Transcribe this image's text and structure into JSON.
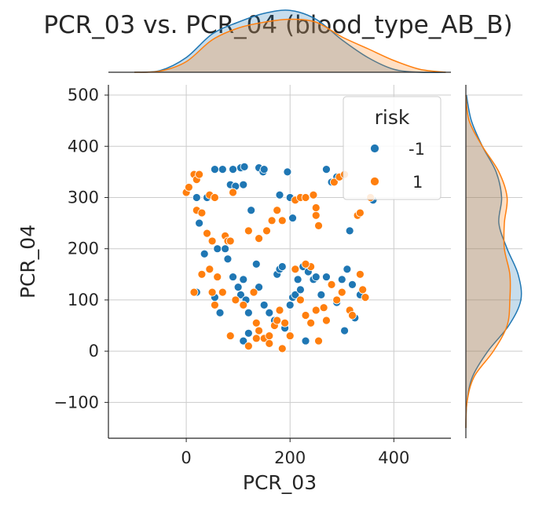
{
  "chart_data": {
    "type": "scatter",
    "title": "PCR_03 vs. PCR_04 (blood_type_AB_B)",
    "xlabel": "PCR_03",
    "ylabel": "PCR_04",
    "xlim": [
      -150,
      510
    ],
    "ylim": [
      -170,
      520
    ],
    "xticks": [
      0,
      200,
      400
    ],
    "xtick_labels": [
      "0",
      "200",
      "400"
    ],
    "yticks": [
      -100,
      0,
      100,
      200,
      300,
      400,
      500
    ],
    "ytick_labels": [
      "−100",
      "0",
      "100",
      "200",
      "300",
      "400",
      "500"
    ],
    "grid": true,
    "marginals": "kde",
    "legend": {
      "title": "risk",
      "position": "top-right",
      "entries": [
        {
          "label": "-1",
          "color": "#1f77b4"
        },
        {
          "label": "1",
          "color": "#ff7f0e"
        }
      ]
    },
    "series": [
      {
        "name": "-1",
        "color": "#1f77b4",
        "points": [
          [
            20,
            300
          ],
          [
            40,
            300
          ],
          [
            55,
            355
          ],
          [
            70,
            355
          ],
          [
            90,
            355
          ],
          [
            105,
            358
          ],
          [
            112,
            360
          ],
          [
            85,
            325
          ],
          [
            95,
            322
          ],
          [
            110,
            325
          ],
          [
            140,
            358
          ],
          [
            148,
            350
          ],
          [
            150,
            355
          ],
          [
            180,
            305
          ],
          [
            195,
            350
          ],
          [
            125,
            275
          ],
          [
            200,
            300
          ],
          [
            205,
            260
          ],
          [
            270,
            355
          ],
          [
            280,
            330
          ],
          [
            290,
            340
          ],
          [
            360,
            295
          ],
          [
            315,
            235
          ],
          [
            20,
            115
          ],
          [
            25,
            250
          ],
          [
            35,
            190
          ],
          [
            45,
            160
          ],
          [
            55,
            105
          ],
          [
            60,
            200
          ],
          [
            65,
            75
          ],
          [
            75,
            200
          ],
          [
            80,
            180
          ],
          [
            90,
            145
          ],
          [
            100,
            125
          ],
          [
            105,
            110
          ],
          [
            110,
            140
          ],
          [
            115,
            100
          ],
          [
            120,
            75
          ],
          [
            110,
            20
          ],
          [
            120,
            35
          ],
          [
            135,
            170
          ],
          [
            140,
            125
          ],
          [
            150,
            90
          ],
          [
            160,
            75
          ],
          [
            175,
            150
          ],
          [
            180,
            160
          ],
          [
            185,
            165
          ],
          [
            190,
            45
          ],
          [
            200,
            90
          ],
          [
            205,
            105
          ],
          [
            210,
            110
          ],
          [
            215,
            140
          ],
          [
            220,
            120
          ],
          [
            225,
            165
          ],
          [
            235,
            155
          ],
          [
            245,
            140
          ],
          [
            250,
            145
          ],
          [
            255,
            20
          ],
          [
            260,
            110
          ],
          [
            270,
            145
          ],
          [
            280,
            130
          ],
          [
            290,
            95
          ],
          [
            300,
            140
          ],
          [
            310,
            160
          ],
          [
            320,
            130
          ],
          [
            325,
            65
          ],
          [
            335,
            110
          ],
          [
            305,
            40
          ],
          [
            230,
            20
          ],
          [
            170,
            60
          ]
        ]
      },
      {
        "name": "1",
        "color": "#ff7f0e",
        "points": [
          [
            0,
            310
          ],
          [
            5,
            320
          ],
          [
            15,
            345
          ],
          [
            20,
            335
          ],
          [
            25,
            345
          ],
          [
            20,
            275
          ],
          [
            30,
            270
          ],
          [
            40,
            230
          ],
          [
            45,
            305
          ],
          [
            50,
            215
          ],
          [
            55,
            300
          ],
          [
            75,
            225
          ],
          [
            80,
            215
          ],
          [
            85,
            215
          ],
          [
            90,
            310
          ],
          [
            120,
            235
          ],
          [
            140,
            220
          ],
          [
            155,
            235
          ],
          [
            165,
            255
          ],
          [
            175,
            275
          ],
          [
            185,
            255
          ],
          [
            210,
            295
          ],
          [
            220,
            300
          ],
          [
            230,
            300
          ],
          [
            245,
            305
          ],
          [
            250,
            280
          ],
          [
            250,
            265
          ],
          [
            255,
            245
          ],
          [
            240,
            165
          ],
          [
            230,
            170
          ],
          [
            285,
            330
          ],
          [
            295,
            340
          ],
          [
            305,
            345
          ],
          [
            330,
            265
          ],
          [
            335,
            270
          ],
          [
            355,
            300
          ],
          [
            15,
            115
          ],
          [
            30,
            150
          ],
          [
            45,
            160
          ],
          [
            50,
            115
          ],
          [
            55,
            90
          ],
          [
            60,
            145
          ],
          [
            70,
            115
          ],
          [
            85,
            30
          ],
          [
            95,
            100
          ],
          [
            110,
            90
          ],
          [
            120,
            10
          ],
          [
            130,
            115
          ],
          [
            135,
            55
          ],
          [
            140,
            40
          ],
          [
            150,
            25
          ],
          [
            160,
            30
          ],
          [
            170,
            50
          ],
          [
            175,
            60
          ],
          [
            180,
            80
          ],
          [
            185,
            5
          ],
          [
            190,
            55
          ],
          [
            200,
            30
          ],
          [
            210,
            160
          ],
          [
            220,
            100
          ],
          [
            230,
            70
          ],
          [
            240,
            55
          ],
          [
            250,
            80
          ],
          [
            255,
            20
          ],
          [
            265,
            85
          ],
          [
            270,
            60
          ],
          [
            280,
            130
          ],
          [
            300,
            115
          ],
          [
            315,
            80
          ],
          [
            320,
            70
          ],
          [
            340,
            120
          ],
          [
            345,
            105
          ],
          [
            335,
            150
          ],
          [
            290,
            100
          ],
          [
            135,
            25
          ],
          [
            160,
            15
          ]
        ]
      }
    ],
    "marginal_x_density": {
      "x": [
        -100,
        -50,
        0,
        50,
        100,
        150,
        200,
        250,
        300,
        350,
        400,
        450,
        500
      ],
      "series_-1": [
        0.0,
        0.03,
        0.25,
        0.65,
        0.85,
        1.0,
        1.05,
        0.9,
        0.55,
        0.25,
        0.05,
        0.0,
        0.0
      ],
      "series_1": [
        0.0,
        0.02,
        0.18,
        0.55,
        0.75,
        0.85,
        0.9,
        0.85,
        0.6,
        0.4,
        0.2,
        0.05,
        0.0
      ]
    },
    "marginal_y_density": {
      "y": [
        -150,
        -100,
        -50,
        0,
        50,
        100,
        150,
        200,
        250,
        300,
        350,
        400,
        450,
        500
      ],
      "series_-1": [
        0.0,
        0.02,
        0.12,
        0.4,
        0.78,
        1.0,
        0.95,
        0.75,
        0.6,
        0.65,
        0.55,
        0.3,
        0.1,
        0.01
      ],
      "series_1": [
        0.0,
        0.02,
        0.15,
        0.5,
        0.75,
        0.8,
        0.8,
        0.7,
        0.7,
        0.75,
        0.6,
        0.3,
        0.06,
        0.0
      ]
    }
  }
}
